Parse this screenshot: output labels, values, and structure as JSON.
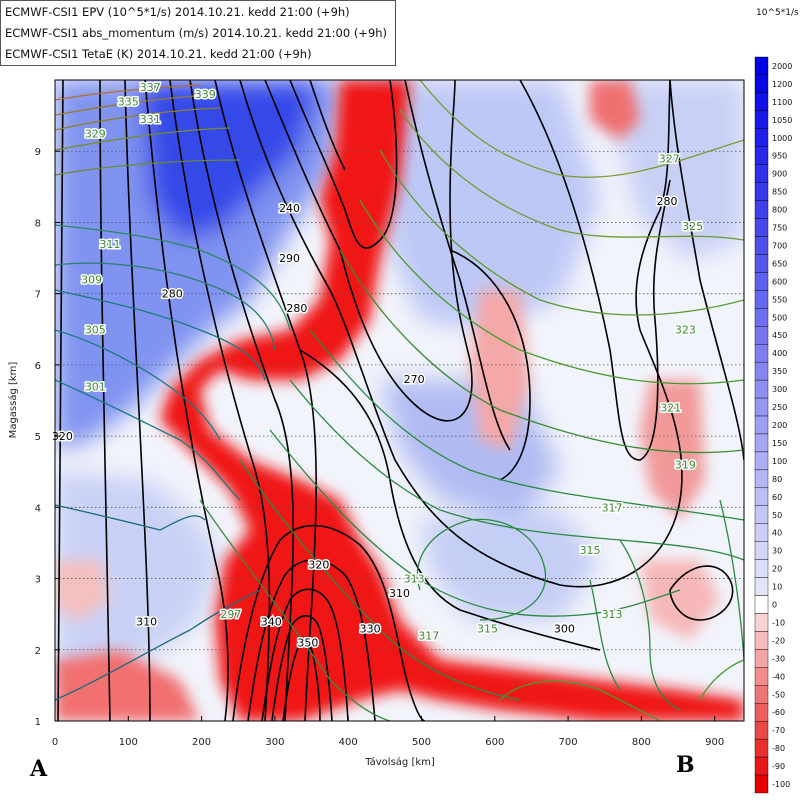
{
  "legend": {
    "line1": "ECMWF-CSI1 EPV (10^5*1/s) 2014.10.21. kedd 21:00 (+9h)",
    "line2": "ECMWF-CSI1 abs_momentum (m/s) 2014.10.21. kedd 21:00 (+9h)",
    "line3": "ECMWF-CSI1 TetaE (K) 2014.10.21. kedd 21:00 (+9h)"
  },
  "colorbar_unit": "10^5*1/s",
  "corner_labels": {
    "left": "A",
    "right": "B"
  },
  "chart_data": {
    "type": "heatmap",
    "xlabel": "Távolság [km]",
    "ylabel": "Magasság [km]",
    "xlim": [
      0,
      940
    ],
    "ylim": [
      1,
      10
    ],
    "x_ticks": [
      0,
      100,
      200,
      300,
      400,
      500,
      600,
      700,
      800,
      900
    ],
    "y_ticks": [
      1,
      2,
      3,
      4,
      5,
      6,
      7,
      8,
      9
    ],
    "grid": "horizontal dotted at each km",
    "colorbar": {
      "levels": [
        2000,
        1200,
        1100,
        1050,
        1000,
        950,
        900,
        850,
        800,
        750,
        700,
        650,
        600,
        550,
        500,
        450,
        400,
        350,
        300,
        250,
        200,
        150,
        100,
        80,
        60,
        50,
        40,
        30,
        20,
        10,
        0,
        -10,
        -20,
        -30,
        -40,
        -50,
        -60,
        -70,
        -80,
        -90,
        -100
      ],
      "positive_color": "#0000ee",
      "negative_color": "#ee0000"
    },
    "momentum_labels": [
      {
        "text": "280",
        "x": 160,
        "y": 7.0
      },
      {
        "text": "290",
        "x": 320,
        "y": 7.5
      },
      {
        "text": "280",
        "x": 330,
        "y": 6.8
      },
      {
        "text": "270",
        "x": 490,
        "y": 5.8
      },
      {
        "text": "240",
        "x": 320,
        "y": 8.2
      },
      {
        "text": "280",
        "x": 835,
        "y": 8.3
      },
      {
        "text": "320",
        "x": 10,
        "y": 5.0
      },
      {
        "text": "310",
        "x": 125,
        "y": 2.4
      },
      {
        "text": "340",
        "x": 295,
        "y": 2.4
      },
      {
        "text": "330",
        "x": 430,
        "y": 2.3
      },
      {
        "text": "320",
        "x": 360,
        "y": 3.2
      },
      {
        "text": "350",
        "x": 345,
        "y": 2.1
      },
      {
        "text": "310",
        "x": 470,
        "y": 2.8
      },
      {
        "text": "300",
        "x": 695,
        "y": 2.3
      }
    ],
    "tetae_labels": [
      {
        "text": "337",
        "x": 130,
        "y": 9.9
      },
      {
        "text": "339",
        "x": 205,
        "y": 9.8
      },
      {
        "text": "335",
        "x": 100,
        "y": 9.7
      },
      {
        "text": "331",
        "x": 130,
        "y": 9.45
      },
      {
        "text": "329",
        "x": 55,
        "y": 9.25
      },
      {
        "text": "311",
        "x": 75,
        "y": 7.7
      },
      {
        "text": "309",
        "x": 50,
        "y": 7.2
      },
      {
        "text": "305",
        "x": 55,
        "y": 6.5
      },
      {
        "text": "301",
        "x": 55,
        "y": 5.7
      },
      {
        "text": "297",
        "x": 240,
        "y": 2.5
      },
      {
        "text": "327",
        "x": 838,
        "y": 8.9
      },
      {
        "text": "325",
        "x": 870,
        "y": 7.95
      },
      {
        "text": "323",
        "x": 860,
        "y": 6.5
      },
      {
        "text": "321",
        "x": 840,
        "y": 5.4
      },
      {
        "text": "319",
        "x": 860,
        "y": 4.6
      },
      {
        "text": "317",
        "x": 760,
        "y": 4.0
      },
      {
        "text": "315",
        "x": 730,
        "y": 3.4
      },
      {
        "text": "313",
        "x": 760,
        "y": 2.5
      },
      {
        "text": "315",
        "x": 590,
        "y": 2.3
      },
      {
        "text": "317",
        "x": 510,
        "y": 2.2
      },
      {
        "text": "313",
        "x": 490,
        "y": 3.0
      }
    ]
  }
}
